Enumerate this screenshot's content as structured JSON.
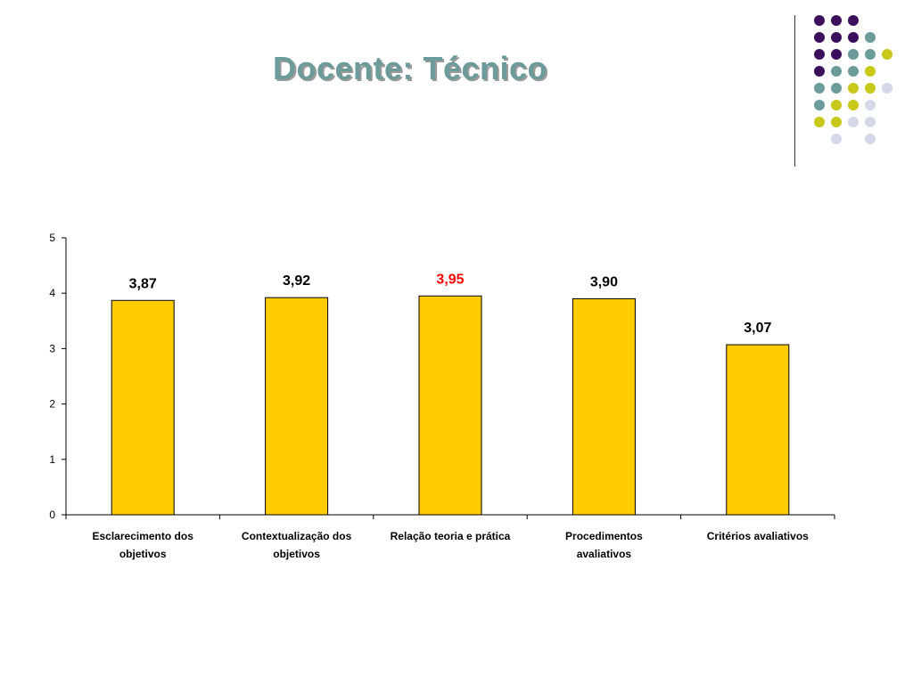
{
  "slide": {
    "title": "Docente: Técnico"
  },
  "decoration": {
    "dot_colors": {
      "purple": "#3b0f5c",
      "teal": "#6b9b9a",
      "yellow": "#c8c81a",
      "lavender": "#d7d7ea"
    },
    "dot_rows": [
      [
        "purple",
        "purple",
        "purple",
        null,
        null
      ],
      [
        "purple",
        "purple",
        "purple",
        "teal",
        null
      ],
      [
        "purple",
        "purple",
        "teal",
        "teal",
        "yellow"
      ],
      [
        "purple",
        "teal",
        "teal",
        "yellow",
        null
      ],
      [
        "teal",
        "teal",
        "yellow",
        "yellow",
        "lavender"
      ],
      [
        "teal",
        "yellow",
        "yellow",
        "lavender",
        null
      ],
      [
        "yellow",
        "yellow",
        "lavender",
        "lavender",
        null
      ],
      [
        null,
        "lavender",
        null,
        "lavender",
        null
      ]
    ]
  },
  "chart_data": {
    "type": "bar",
    "title": "",
    "xlabel": "",
    "ylabel": "",
    "ylim": [
      0,
      5
    ],
    "yticks": [
      "0",
      "1",
      "2",
      "3",
      "4",
      "5"
    ],
    "categories": [
      [
        "Esclarecimento dos",
        "objetivos"
      ],
      [
        "Contextualização dos",
        "objetivos"
      ],
      [
        "Relação teoria e prática"
      ],
      [
        "Procedimentos",
        "avaliativos"
      ],
      [
        "Critérios avaliativos"
      ]
    ],
    "values": [
      3.87,
      3.92,
      3.95,
      3.9,
      3.07
    ],
    "data_labels": [
      "3,87",
      "3,92",
      "3,95",
      "3,90",
      "3,07"
    ],
    "highlight_index": 2,
    "colors": {
      "bar_fill": "#ffcc00",
      "bar_stroke": "#000000",
      "label": "#000000",
      "highlight_label": "#ff0000"
    },
    "grid": false,
    "legend": "none"
  }
}
